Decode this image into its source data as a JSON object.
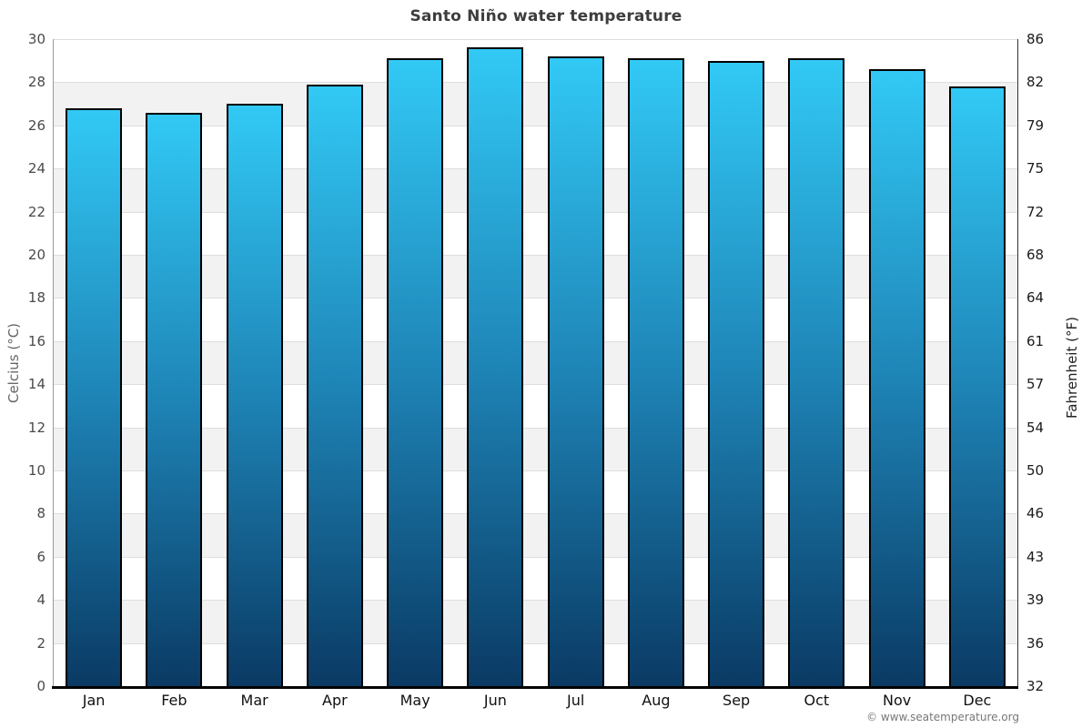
{
  "title": "Santo Niño water temperature",
  "watermark": "© www.seatemperature.org",
  "axes": {
    "left_label": "Celcius (°C)",
    "right_label": "Fahrenheit (°F)"
  },
  "chart_data": {
    "type": "bar",
    "title": "Santo Niño water temperature",
    "categories": [
      "Jan",
      "Feb",
      "Mar",
      "Apr",
      "May",
      "Jun",
      "Jul",
      "Aug",
      "Sep",
      "Oct",
      "Nov",
      "Dec"
    ],
    "values": [
      26.8,
      26.6,
      27.0,
      27.9,
      29.1,
      29.6,
      29.2,
      29.1,
      29.0,
      29.1,
      28.6,
      27.8
    ],
    "unit": "°C",
    "ylabel_left": "Celcius (°C)",
    "ylabel_right": "Fahrenheit (°F)",
    "ylim": [
      0,
      30
    ],
    "celsius_ticks_top_to_bottom": [
      30,
      28,
      26,
      24,
      22,
      20,
      18,
      16,
      14,
      12,
      10,
      8,
      6,
      4,
      2,
      0
    ],
    "fahrenheit_ticks_top_to_bottom": [
      86,
      82,
      79,
      75,
      72,
      68,
      64,
      61,
      57,
      54,
      50,
      46,
      43,
      39,
      36,
      32
    ],
    "grid": "horizontal gridlines every 2°C with alternating white/gray bands",
    "legend": "none",
    "colors": {
      "bar_gradient_top": "#32c9f5",
      "bar_gradient_bottom": "#0a3a64",
      "bar_border": "#000000",
      "band_gray": "#f2f2f2",
      "gridline": "#dedede",
      "title_text": "#3d3d3d"
    }
  }
}
